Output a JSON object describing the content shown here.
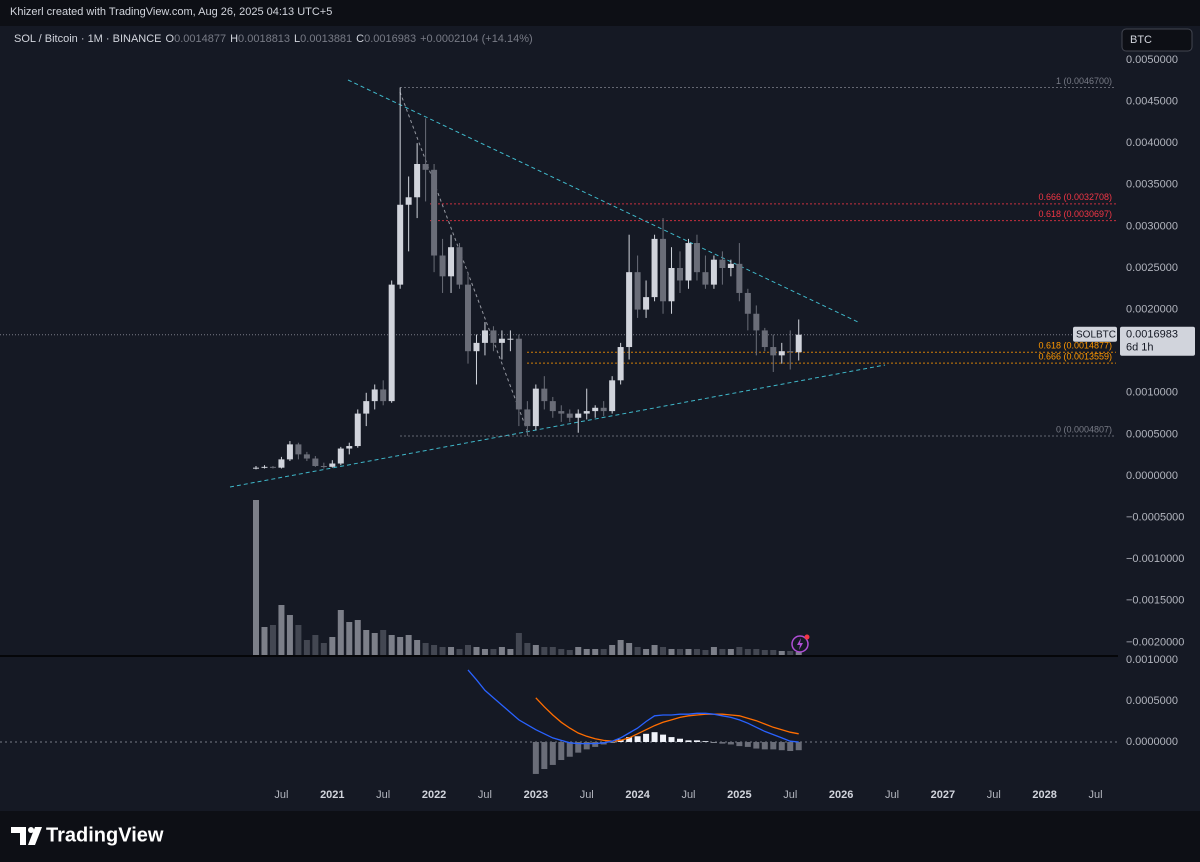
{
  "watermark": "Khizerl created with TradingView.com, Aug 26, 2025 04:13 UTC+5",
  "currency_button": "BTC",
  "brand": "TradingView",
  "chart_data": {
    "type": "candlestick",
    "title": "SOL / Bitcoin · 1M · BINANCE",
    "ohlc": [
      {
        "label": "O",
        "value": 0.0014877
      },
      {
        "label": "H",
        "value": 0.0018813
      },
      {
        "label": "L",
        "value": 0.0013881
      },
      {
        "label": "C",
        "value": 0.0016983
      }
    ],
    "change": "+0.0002104 (+14.14%)",
    "up_color": "#d1d4dc",
    "down_color": "#6a6d78",
    "grid": false,
    "open": [
      9e-05,
      0.0001,
      0.00011,
      0.0001,
      0.0002,
      0.00038,
      0.00026,
      0.00021,
      0.00012,
      0.00011,
      0.00015,
      0.00033,
      0.00036,
      0.00075,
      0.0009,
      0.00104,
      0.0009,
      0.0023,
      0.00326,
      0.00335,
      0.00375,
      0.00368,
      0.00265,
      0.0024,
      0.00275,
      0.0023,
      0.0015,
      0.0016,
      0.00175,
      0.0016,
      0.00165,
      0.00165,
      0.0008,
      0.0006,
      0.00105,
      0.0009,
      0.00078,
      0.00075,
      0.0007,
      0.00075,
      0.00078,
      0.00082,
      0.00078,
      0.00115,
      0.00155,
      0.00245,
      0.002,
      0.00215,
      0.00285,
      0.0021,
      0.0025,
      0.00235,
      0.0028,
      0.00245,
      0.0023,
      0.0026,
      0.0025,
      0.00255,
      0.0022,
      0.00195,
      0.00175,
      0.00155,
      0.00145,
      0.0015,
      0.0014877
    ],
    "high": [
      0.00012,
      0.00013,
      0.00012,
      0.00023,
      0.00042,
      0.0004,
      0.00029,
      0.00024,
      0.00016,
      0.00019,
      0.00035,
      0.0004,
      0.0008,
      0.001,
      0.0011,
      0.00115,
      0.00235,
      0.00467,
      0.0036,
      0.004,
      0.0043,
      0.00375,
      0.00285,
      0.0029,
      0.0028,
      0.00245,
      0.0017,
      0.00185,
      0.0018,
      0.00175,
      0.00175,
      0.0017,
      0.0009,
      0.0011,
      0.0012,
      0.00095,
      0.00085,
      0.0008,
      0.0008,
      0.00105,
      0.00085,
      0.0009,
      0.0012,
      0.0016,
      0.0029,
      0.00265,
      0.00235,
      0.0029,
      0.0031,
      0.00275,
      0.0027,
      0.00285,
      0.0029,
      0.00265,
      0.00265,
      0.0027,
      0.0026,
      0.0028,
      0.00225,
      0.00205,
      0.00178,
      0.0017,
      0.0016,
      0.00175,
      0.0018813
    ],
    "low": [
      8e-05,
      9e-05,
      9e-05,
      9e-05,
      0.00018,
      0.0002,
      0.00018,
      0.00011,
      9e-05,
      0.0001,
      0.00013,
      0.00026,
      0.00034,
      0.0006,
      0.0008,
      0.00085,
      0.00088,
      0.00225,
      0.0027,
      0.0031,
      0.0033,
      0.00245,
      0.0022,
      0.0022,
      0.00225,
      0.00135,
      0.0011,
      0.00145,
      0.0015,
      0.0014,
      0.0015,
      0.0006,
      0.00048,
      0.00055,
      0.0008,
      0.0007,
      0.00065,
      0.00065,
      0.00052,
      0.00068,
      0.0007,
      0.00072,
      0.00075,
      0.0011,
      0.0014,
      0.0019,
      0.0019,
      0.0021,
      0.00195,
      0.00195,
      0.0022,
      0.00225,
      0.00235,
      0.00225,
      0.00225,
      0.0023,
      0.0024,
      0.0021,
      0.00175,
      0.00145,
      0.0015,
      0.00125,
      0.00135,
      0.00128,
      0.0013881
    ],
    "close": [
      0.0001,
      0.00011,
      0.0001,
      0.0002,
      0.00038,
      0.00026,
      0.00021,
      0.00012,
      0.00011,
      0.00015,
      0.00033,
      0.00036,
      0.00075,
      0.0009,
      0.00104,
      0.0009,
      0.0023,
      0.00326,
      0.00335,
      0.00375,
      0.00368,
      0.00265,
      0.0024,
      0.00275,
      0.0023,
      0.0015,
      0.0016,
      0.00175,
      0.0016,
      0.00165,
      0.00165,
      0.0008,
      0.0006,
      0.00105,
      0.0009,
      0.00078,
      0.00075,
      0.0007,
      0.00075,
      0.00078,
      0.00082,
      0.00078,
      0.00115,
      0.00155,
      0.00245,
      0.002,
      0.00215,
      0.00285,
      0.0021,
      0.0025,
      0.00235,
      0.0028,
      0.00245,
      0.0023,
      0.0026,
      0.0025,
      0.00255,
      0.0022,
      0.00195,
      0.00175,
      0.00155,
      0.00145,
      0.0015,
      0.0014879,
      0.0016983
    ],
    "volume": [
      155,
      28,
      30,
      50,
      40,
      30,
      15,
      20,
      12,
      18,
      45,
      33,
      35,
      25,
      22,
      25,
      20,
      18,
      20,
      15,
      12,
      10,
      8,
      8,
      6,
      10,
      8,
      6,
      6,
      8,
      6,
      22,
      12,
      10,
      8,
      8,
      6,
      5,
      8,
      6,
      6,
      6,
      10,
      15,
      12,
      8,
      6,
      10,
      8,
      6,
      6,
      6,
      6,
      5,
      8,
      6,
      6,
      8,
      6,
      6,
      5,
      5,
      4,
      4,
      3
    ],
    "time_labels": [
      "Jul",
      "2021",
      "Jul",
      "2022",
      "Jul",
      "2023",
      "Jul",
      "2024",
      "Jul",
      "2025",
      "Jul",
      "2026",
      "Jul",
      "2027",
      "Jul",
      "2028",
      "Jul"
    ],
    "ylim": [
      -0.0021635,
      0.0053846
    ],
    "yticks": [
      {
        "value": 0.005,
        "label": "0.0050000"
      },
      {
        "value": 0.0045,
        "label": "0.0045000"
      },
      {
        "value": 0.004,
        "label": "0.0040000"
      },
      {
        "value": 0.0035,
        "label": "0.0035000"
      },
      {
        "value": 0.003,
        "label": "0.0030000"
      },
      {
        "value": 0.0025,
        "label": "0.0025000"
      },
      {
        "value": 0.002,
        "label": "0.0020000"
      },
      {
        "value": 0.0015,
        "label": "0.0015000"
      },
      {
        "value": 0.001,
        "label": "0.0010000"
      },
      {
        "value": 0.0005,
        "label": "0.0005000"
      },
      {
        "value": 0,
        "label": "0.0000000"
      },
      {
        "value": -0.0005,
        "label": "−0.0005000"
      },
      {
        "value": -0.001,
        "label": "−0.0010000"
      },
      {
        "value": -0.0015,
        "label": "−0.0015000"
      },
      {
        "value": -0.002,
        "label": "−0.0020000"
      }
    ],
    "levels": [
      {
        "value": 0.00467,
        "label": "1 (0.0046700)",
        "color": "#787b86"
      },
      {
        "value": 0.0032708,
        "label": "0.666 (0.0032708)",
        "color": "#f23645"
      },
      {
        "value": 0.0030697,
        "label": "0.618 (0.0030697)",
        "color": "#f23645"
      },
      {
        "value": 0.0014877,
        "label": "0.618 (0.0014877)",
        "color": "#ff9800"
      },
      {
        "value": 0.0013559,
        "label": "0.666 (0.0013559)",
        "color": "#ff9800"
      },
      {
        "value": 0.0004807,
        "label": "0 (0.0004807)",
        "color": "#787b86"
      }
    ],
    "last": {
      "symbol": "SOLBTC",
      "value": 0.0016983,
      "label": "0.0016983",
      "countdown": "6d 1h"
    },
    "macd": {
      "ylim": [
        -0.000525,
        0.00105
      ],
      "yticks": [
        {
          "value": 0.001,
          "label": "0.0010000"
        },
        {
          "value": 0.0005,
          "label": "0.0005000"
        },
        {
          "value": 0,
          "label": "0.0000000"
        }
      ],
      "macd_color": "#2962ff",
      "signal_color": "#ff6d00",
      "macd": [
        null,
        null,
        null,
        null,
        null,
        null,
        null,
        null,
        null,
        null,
        null,
        null,
        null,
        null,
        null,
        null,
        null,
        null,
        null,
        null,
        null,
        null,
        null,
        null,
        null,
        0.00088,
        0.00076,
        0.00063,
        0.00054,
        0.00045,
        0.00036,
        0.00027,
        0.00021,
        0.00015,
        0.0001,
        5e-05,
        2e-05,
        -1e-05,
        -2e-05,
        -2e-05,
        -2e-05,
        -1e-05,
        1e-05,
        5e-05,
        0.00011,
        0.00017,
        0.00025,
        0.00032,
        0.00033,
        0.00033,
        0.00034,
        0.00034,
        0.00035,
        0.00035,
        0.00034,
        0.00032,
        0.0003,
        0.00027,
        0.00023,
        0.00018,
        0.00013,
        9e-05,
        5e-05,
        1e-05,
        0
      ],
      "signal": [
        null,
        null,
        null,
        null,
        null,
        null,
        null,
        null,
        null,
        null,
        null,
        null,
        null,
        null,
        null,
        null,
        null,
        null,
        null,
        null,
        null,
        null,
        null,
        null,
        null,
        null,
        null,
        null,
        null,
        null,
        null,
        null,
        null,
        0.00054,
        0.00043,
        0.00033,
        0.00024,
        0.00017,
        0.00011,
        7e-05,
        4e-05,
        2e-05,
        1e-05,
        2e-05,
        5e-05,
        0.0001,
        0.00015,
        0.0002,
        0.00024,
        0.00027,
        0.0003,
        0.00032,
        0.00033,
        0.00034,
        0.00034,
        0.00034,
        0.00033,
        0.00032,
        0.00029,
        0.00026,
        0.00022,
        0.00018,
        0.00015,
        0.00012,
        0.0001
      ],
      "histogram": [
        null,
        null,
        null,
        null,
        null,
        null,
        null,
        null,
        null,
        null,
        null,
        null,
        null,
        null,
        null,
        null,
        null,
        null,
        null,
        null,
        null,
        null,
        null,
        null,
        null,
        null,
        null,
        null,
        null,
        null,
        null,
        null,
        null,
        -0.00039,
        -0.00033,
        -0.00028,
        -0.00022,
        -0.00018,
        -0.00013,
        -9e-05,
        -6e-05,
        -3e-05,
        0,
        3e-05,
        6e-05,
        7e-05,
        0.0001,
        0.00012,
        9e-05,
        6e-05,
        4e-05,
        2e-05,
        2e-05,
        1e-05,
        0,
        -2e-05,
        -3e-05,
        -5e-05,
        -6e-05,
        -8e-05,
        -9e-05,
        -9e-05,
        -0.0001,
        -0.00011,
        -0.0001
      ]
    }
  }
}
